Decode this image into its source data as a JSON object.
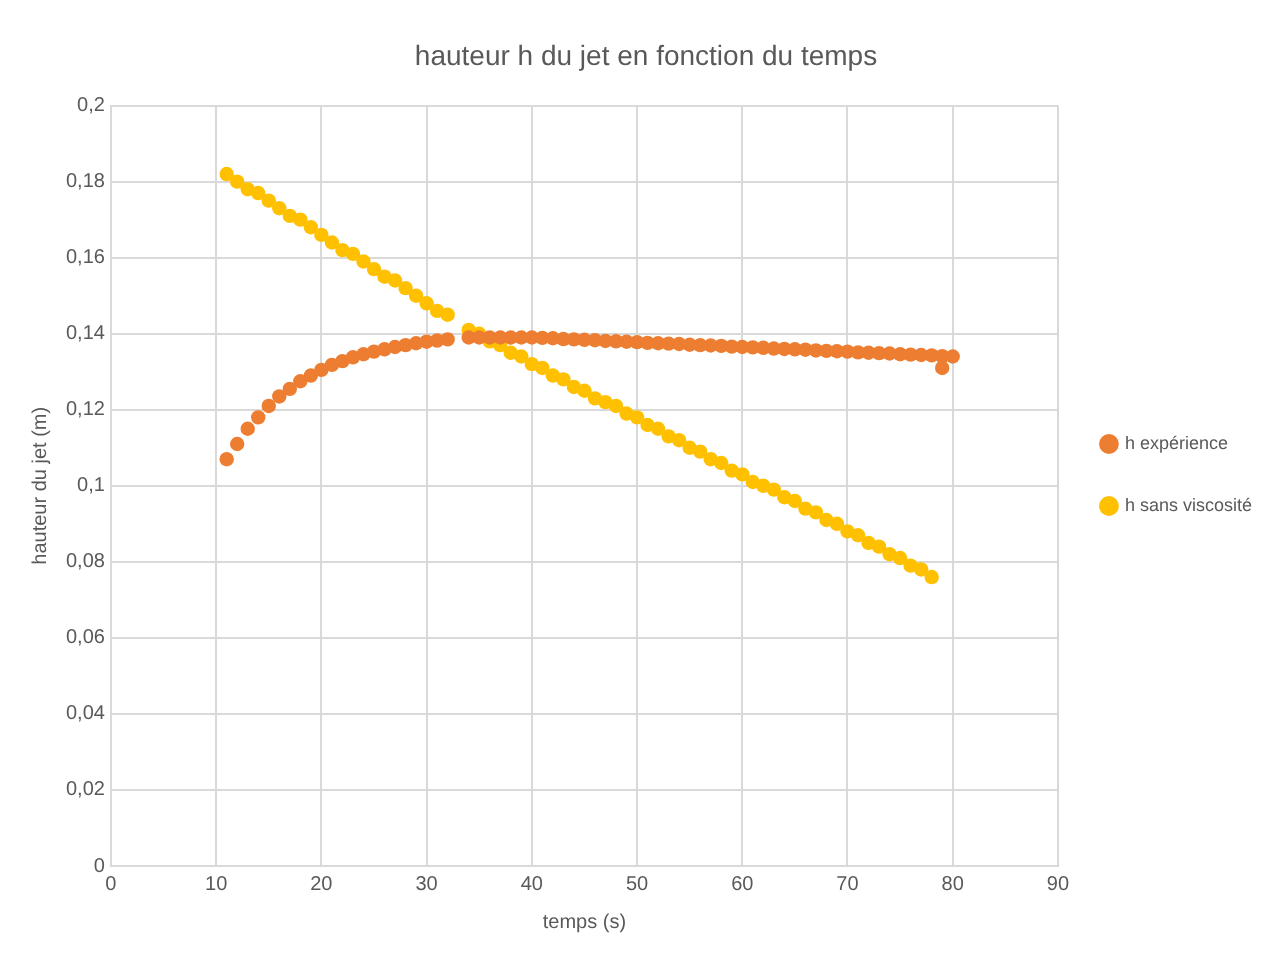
{
  "chart_data": {
    "type": "scatter",
    "title": "hauteur h du jet en fonction du temps",
    "xlabel": "temps (s)",
    "ylabel": "hauteur du jet (m)",
    "xlim": [
      0,
      90
    ],
    "xticks": [
      0,
      10,
      20,
      30,
      40,
      50,
      60,
      70,
      80,
      90
    ],
    "ylim": [
      0,
      0.2
    ],
    "yticks": [
      {
        "value": 0,
        "label": "0"
      },
      {
        "value": 0.02,
        "label": "0,02"
      },
      {
        "value": 0.04,
        "label": "0,04"
      },
      {
        "value": 0.06,
        "label": "0,06"
      },
      {
        "value": 0.08,
        "label": "0,08"
      },
      {
        "value": 0.1,
        "label": "0,1"
      },
      {
        "value": 0.12,
        "label": "0,12"
      },
      {
        "value": 0.14,
        "label": "0,14"
      },
      {
        "value": 0.16,
        "label": "0,16"
      },
      {
        "value": 0.18,
        "label": "0,18"
      },
      {
        "value": 0.2,
        "label": "0,2"
      }
    ],
    "grid": true,
    "legend": "right",
    "marker": "circle",
    "series": [
      {
        "name": "h expérience",
        "color": "#ed7d31",
        "x": [
          11,
          12,
          13,
          14,
          15,
          16,
          17,
          18,
          19,
          20,
          21,
          22,
          23,
          24,
          25,
          26,
          27,
          28,
          29,
          30,
          31,
          32,
          34,
          35,
          36,
          37,
          38,
          39,
          40,
          41,
          42,
          43,
          44,
          45,
          46,
          47,
          48,
          49,
          50,
          51,
          52,
          53,
          54,
          55,
          56,
          57,
          58,
          59,
          60,
          61,
          62,
          63,
          64,
          65,
          66,
          67,
          68,
          69,
          70,
          71,
          72,
          73,
          74,
          75,
          76,
          77,
          78,
          79,
          80,
          79
        ],
        "values": [
          0.107,
          0.111,
          0.115,
          0.118,
          0.121,
          0.1235,
          0.1255,
          0.1275,
          0.129,
          0.1305,
          0.1318,
          0.1328,
          0.1338,
          0.1346,
          0.1353,
          0.1359,
          0.1365,
          0.137,
          0.1375,
          0.1379,
          0.1382,
          0.1385,
          0.139,
          0.139,
          0.139,
          0.139,
          0.139,
          0.139,
          0.139,
          0.1389,
          0.1388,
          0.1386,
          0.1385,
          0.1384,
          0.1383,
          0.1381,
          0.138,
          0.1379,
          0.1378,
          0.1376,
          0.1375,
          0.1374,
          0.1373,
          0.1371,
          0.137,
          0.1369,
          0.1368,
          0.1366,
          0.1365,
          0.1364,
          0.1363,
          0.1361,
          0.136,
          0.1359,
          0.1358,
          0.1356,
          0.1355,
          0.1354,
          0.1353,
          0.1351,
          0.135,
          0.1349,
          0.1348,
          0.1346,
          0.1345,
          0.1344,
          0.1343,
          0.1341,
          0.134,
          0.131
        ]
      },
      {
        "name": "h sans viscosité",
        "color": "#ffc000",
        "x": [
          11,
          12,
          13,
          14,
          15,
          16,
          17,
          18,
          19,
          20,
          21,
          22,
          23,
          24,
          25,
          26,
          27,
          28,
          29,
          30,
          31,
          32,
          34,
          35,
          36,
          37,
          38,
          39,
          40,
          41,
          42,
          43,
          44,
          45,
          46,
          47,
          48,
          49,
          50,
          51,
          52,
          53,
          54,
          55,
          56,
          57,
          58,
          59,
          60,
          61,
          62,
          63,
          64,
          65,
          66,
          67,
          68,
          69,
          70,
          71,
          72,
          73,
          74,
          75,
          76,
          77,
          78
        ],
        "values": [
          0.182,
          0.18,
          0.178,
          0.177,
          0.175,
          0.173,
          0.171,
          0.17,
          0.168,
          0.166,
          0.164,
          0.162,
          0.161,
          0.159,
          0.157,
          0.155,
          0.154,
          0.152,
          0.15,
          0.148,
          0.146,
          0.145,
          0.141,
          0.14,
          0.138,
          0.137,
          0.135,
          0.134,
          0.132,
          0.131,
          0.129,
          0.128,
          0.126,
          0.125,
          0.123,
          0.122,
          0.121,
          0.119,
          0.118,
          0.116,
          0.115,
          0.113,
          0.112,
          0.11,
          0.109,
          0.107,
          0.106,
          0.104,
          0.103,
          0.101,
          0.1,
          0.099,
          0.097,
          0.096,
          0.094,
          0.093,
          0.091,
          0.09,
          0.088,
          0.087,
          0.085,
          0.084,
          0.082,
          0.081,
          0.079,
          0.078,
          0.076
        ]
      }
    ]
  }
}
